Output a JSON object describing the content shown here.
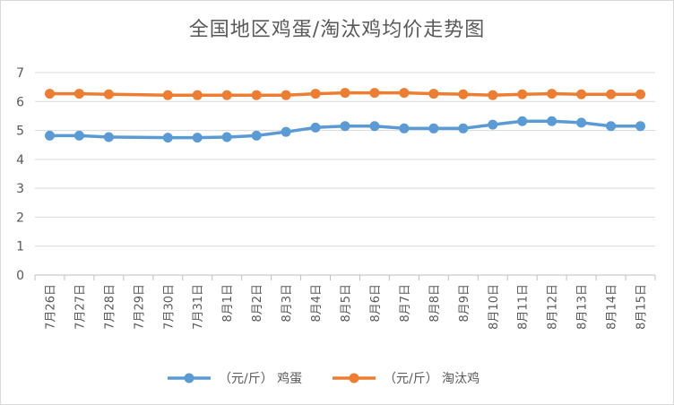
{
  "chart_data": {
    "type": "line",
    "title": "全国地区鸡蛋/淘汰鸡均价走势图",
    "categories": [
      "7月26日",
      "7月27日",
      "7月28日",
      "7月29日",
      "7月30日",
      "7月31日",
      "8月1日",
      "8月2日",
      "8月3日",
      "8月4日",
      "8月5日",
      "8月6日",
      "8月7日",
      "8月8日",
      "8月9日",
      "8月10日",
      "8月11日",
      "8月12日",
      "8月13日",
      "8月14日",
      "8月15日"
    ],
    "ylim": [
      0,
      7
    ],
    "yticks": [
      "0",
      "1",
      "2",
      "3",
      "4",
      "5",
      "6",
      "7"
    ],
    "grid": true,
    "legend_position": "bottom",
    "series": [
      {
        "name": "（元/斤） 鸡蛋",
        "color": "#5b9bd5",
        "values": [
          4.82,
          4.82,
          4.77,
          null,
          4.75,
          4.75,
          4.77,
          4.82,
          4.95,
          5.1,
          5.15,
          5.15,
          5.07,
          5.07,
          5.07,
          5.2,
          5.32,
          5.32,
          5.27,
          5.15,
          5.15
        ]
      },
      {
        "name": "（元/斤） 淘汰鸡",
        "color": "#ed7d31",
        "values": [
          6.27,
          6.27,
          6.25,
          null,
          6.22,
          6.22,
          6.22,
          6.22,
          6.22,
          6.27,
          6.3,
          6.3,
          6.3,
          6.27,
          6.25,
          6.22,
          6.25,
          6.27,
          6.25,
          6.25,
          6.25
        ]
      }
    ]
  }
}
